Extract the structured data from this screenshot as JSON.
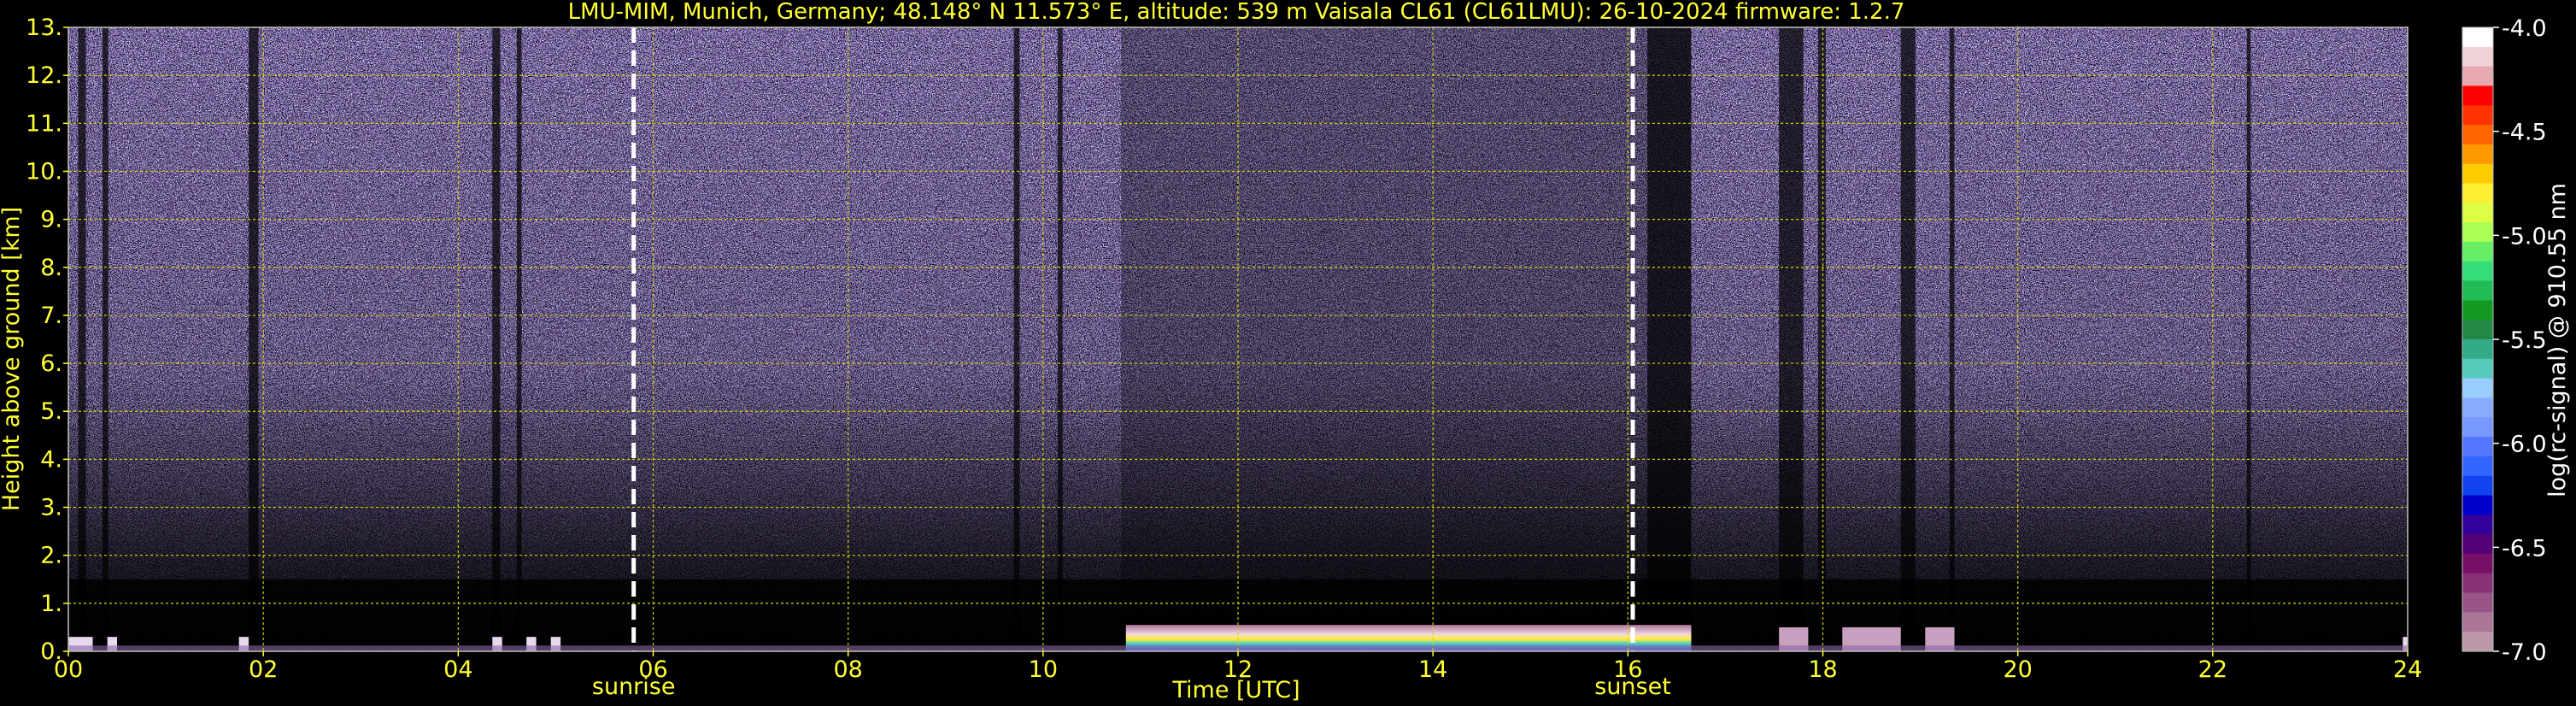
{
  "chart_data": {
    "type": "heatmap",
    "title": "LMU-MIM, Munich, Germany; 48.148° N 11.573° E, altitude: 539 m    Vaisala CL61 (CL61LMU): 26-10-2024    firmware: 1.2.7",
    "xlabel": "Time [UTC]",
    "ylabel": "Height above ground [km]",
    "xlim": [
      0,
      24
    ],
    "ylim": [
      0,
      13
    ],
    "x_ticks": [
      "00",
      "02",
      "04",
      "06",
      "08",
      "10",
      "12",
      "14",
      "16",
      "18",
      "20",
      "22",
      "24"
    ],
    "y_ticks": [
      "0.",
      "1.",
      "2.",
      "3.",
      "4.",
      "5.",
      "6.",
      "7.",
      "8.",
      "9.",
      "10.",
      "11.",
      "12.",
      "13."
    ],
    "grid": true,
    "colorbar": {
      "label": "log(rc-signal) @ 910.55 nm",
      "range": [
        -7.0,
        -4.0
      ],
      "ticks": [
        "-4.0",
        "-4.5",
        "-5.0",
        "-5.5",
        "-6.0",
        "-6.5",
        "-7.0"
      ],
      "colors": [
        "#ffffff",
        "#f2d4d8",
        "#e6a9b0",
        "#ff0000",
        "#ff3300",
        "#ff6600",
        "#ff9900",
        "#ffcc00",
        "#ffee33",
        "#ddff44",
        "#aaff55",
        "#66ee66",
        "#33dd77",
        "#22bb55",
        "#119922",
        "#228844",
        "#33aa88",
        "#55ccbb",
        "#99ccff",
        "#88aaff",
        "#7799ff",
        "#5577ff",
        "#3366ff",
        "#1144ee",
        "#0000cc",
        "#330099",
        "#550077",
        "#771166",
        "#883377",
        "#995588",
        "#aa7799",
        "#bb99aa"
      ]
    },
    "events": [
      {
        "name": "sunrise",
        "time": 5.8
      },
      {
        "name": "sunset",
        "time": 16.05
      }
    ]
  }
}
